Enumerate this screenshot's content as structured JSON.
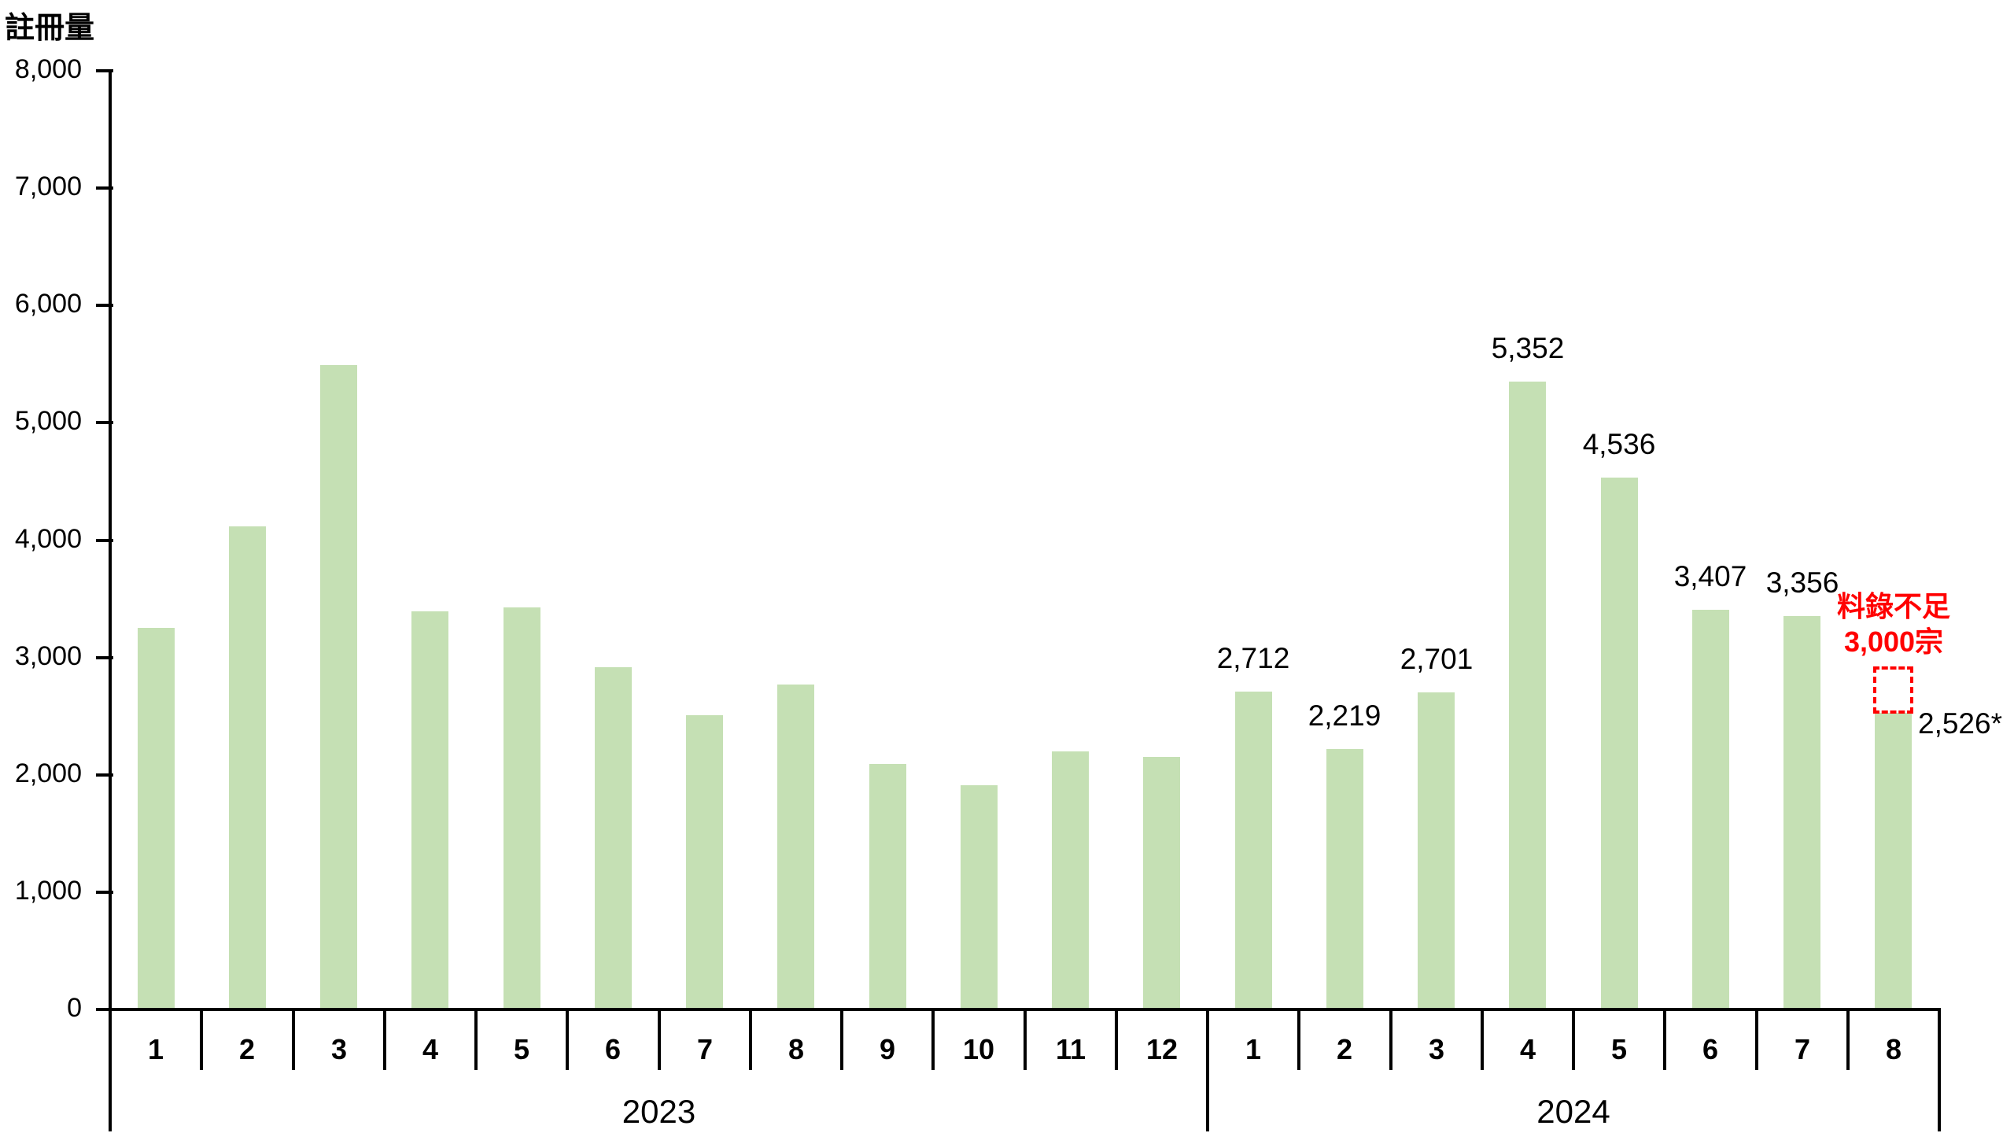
{
  "chart_data": {
    "type": "bar",
    "title": "",
    "ylabel": "註冊量",
    "xlabel": "",
    "ylim": [
      0,
      8000
    ],
    "grid": false,
    "legend_position": "none",
    "bar_color": "#c5e0b4",
    "axis_color": "#000000",
    "yticks": [
      {
        "value": 0,
        "label": "0"
      },
      {
        "value": 1000,
        "label": "1,000"
      },
      {
        "value": 2000,
        "label": "2,000"
      },
      {
        "value": 3000,
        "label": "3,000"
      },
      {
        "value": 4000,
        "label": "4,000"
      },
      {
        "value": 5000,
        "label": "5,000"
      },
      {
        "value": 6000,
        "label": "6,000"
      },
      {
        "value": 7000,
        "label": "7,000"
      },
      {
        "value": 8000,
        "label": "8,000"
      }
    ],
    "groups": [
      {
        "year": "2023",
        "categories": [
          "1",
          "2",
          "3",
          "4",
          "5",
          "6",
          "7",
          "8",
          "9",
          "10",
          "11",
          "12"
        ],
        "values": [
          3250,
          4120,
          5490,
          3390,
          3430,
          2920,
          2510,
          2770,
          2090,
          1910,
          2200,
          2150
        ],
        "data_labels": [
          null,
          null,
          null,
          null,
          null,
          null,
          null,
          null,
          null,
          null,
          null,
          null
        ]
      },
      {
        "year": "2024",
        "categories": [
          "1",
          "2",
          "3",
          "4",
          "5",
          "6",
          "7",
          "8"
        ],
        "values": [
          2712,
          2219,
          2701,
          5352,
          4536,
          3407,
          3356,
          2526
        ],
        "data_labels": [
          "2,712",
          "2,219",
          "2,701",
          "5,352",
          "4,536",
          "3,407",
          "3,356",
          "2,526*"
        ]
      }
    ],
    "annotation": {
      "text_lines": [
        "料錄不足",
        "3,000宗"
      ],
      "color": "#ff0000",
      "target_year": "2024",
      "target_month": "8",
      "box": {
        "value_top": 2925,
        "value_bottom": 2526
      }
    }
  }
}
